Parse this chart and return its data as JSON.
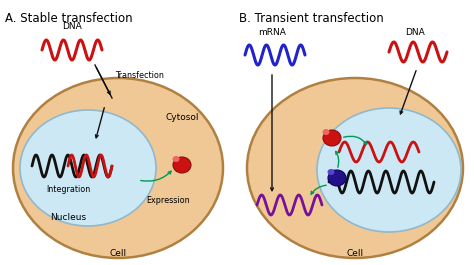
{
  "background_color": "#ffffff",
  "cell_fill": "#f0c896",
  "nucleus_fill": "#cce8f4",
  "cell_edge_color": "#b08040",
  "nucleus_edge_color": "#90b8cc",
  "title_A": "A. Stable transfection",
  "title_B": "B. Transient transfection",
  "label_cell": "Cell",
  "label_nucleus_A": "Nucleus",
  "label_cytosol_A": "Cytosol",
  "label_integration": "Integration",
  "label_expression": "Expression",
  "label_transfection": "Transfection",
  "label_dna_A": "DNA",
  "label_mrna_B": "mRNA",
  "label_dna_B": "DNA",
  "wave_color_red": "#cc1111",
  "wave_color_blue": "#2222cc",
  "wave_color_black": "#111111",
  "wave_color_purple": "#771199",
  "arrow_color_black": "#111111",
  "arrow_color_green": "#009955",
  "font_size_title": 8.5,
  "font_size_label": 6.5,
  "font_size_small": 5.8,
  "cell_lw": 1.8,
  "nucleus_lw": 1.2
}
